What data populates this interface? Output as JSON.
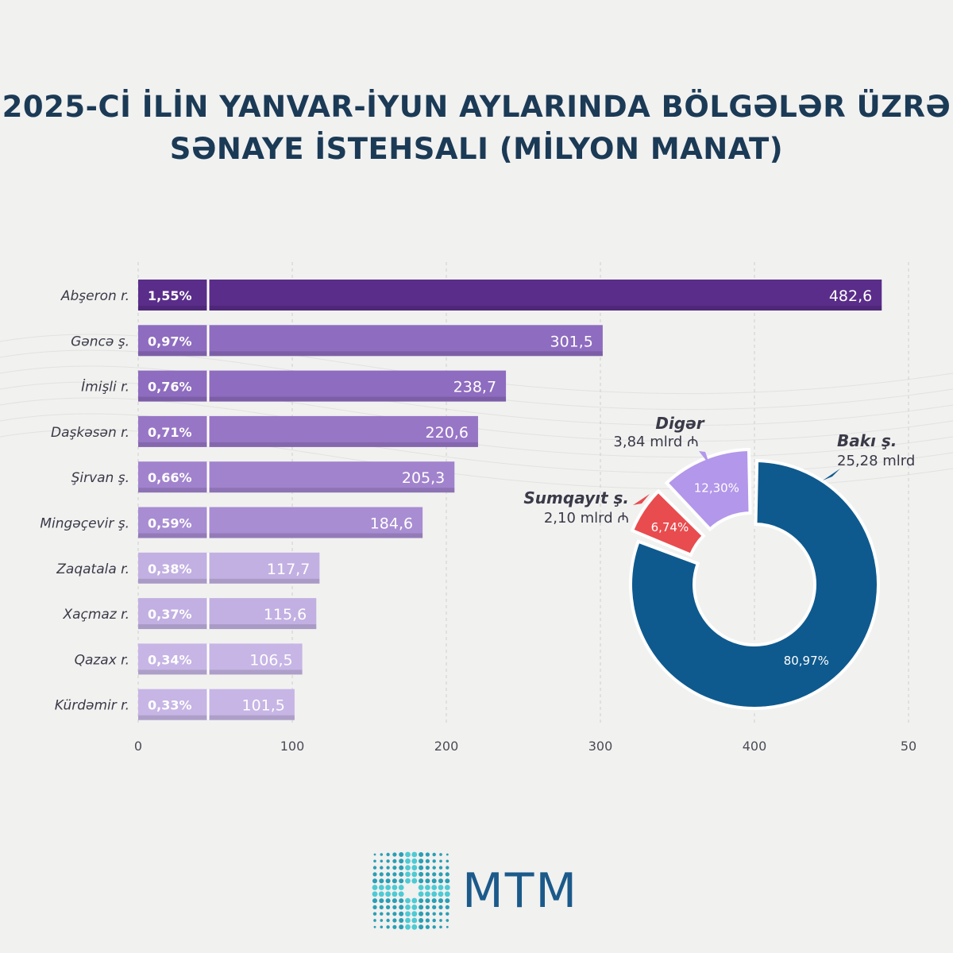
{
  "title": {
    "line1": "2025-Cİ İLİN YANVAR-İYUN AYLARINDA BÖLGƏLƏR ÜZRƏ",
    "line2": "SƏNAYE İSTEHSALI (MİLYON MANAT)"
  },
  "brand": {
    "name": "MTM"
  },
  "chart_data": [
    {
      "type": "bar",
      "orientation": "horizontal",
      "title": "",
      "categories": [
        "Abşeron r.",
        "Gəncə ş.",
        "İmişli r.",
        "Daşkəsən r.",
        "Şirvan ş.",
        "Mingəçevir ş.",
        "Zaqatala r.",
        "Xaçmaz r.",
        "Qazax r.",
        "Kürdəmir r."
      ],
      "values": [
        482.6,
        301.5,
        238.7,
        220.6,
        205.3,
        184.6,
        117.7,
        115.6,
        106.5,
        101.5
      ],
      "value_labels": [
        "482,6",
        "301,5",
        "238,7",
        "220,6",
        "205,3",
        "184,6",
        "117,7",
        "115,6",
        "106,5",
        "101,5"
      ],
      "shares": [
        "1,55%",
        "0,97%",
        "0,76%",
        "0,71%",
        "0,66%",
        "0,59%",
        "0,38%",
        "0,37%",
        "0,34%",
        "0,33%"
      ],
      "xlim": [
        0,
        500
      ],
      "xticks": [
        "0",
        "100",
        "200",
        "300",
        "400",
        "50"
      ],
      "grid": true,
      "colors": [
        "#5a2d8a",
        "#8e6cbf",
        "#8e6cbf",
        "#9876c6",
        "#a183cd",
        "#a88dd2",
        "#c2b0e2",
        "#c2b0e2",
        "#c6b5e5",
        "#c6b5e5"
      ]
    },
    {
      "type": "pie",
      "style": "donut",
      "slices": [
        {
          "label": "Bakı ş.",
          "amount": "25,28 mlrd",
          "value": 80.97,
          "pct_label": "80,97%",
          "color": "#0e5a8e"
        },
        {
          "label": "Sumqayıt ş.",
          "amount": "2,10 mlrd ₼",
          "value": 6.74,
          "pct_label": "6,74%",
          "color": "#e84c4f"
        },
        {
          "label": "Digər",
          "amount": "3,84 mlrd ₼",
          "value": 12.3,
          "pct_label": "12,30%",
          "color": "#b397ea"
        }
      ]
    }
  ]
}
